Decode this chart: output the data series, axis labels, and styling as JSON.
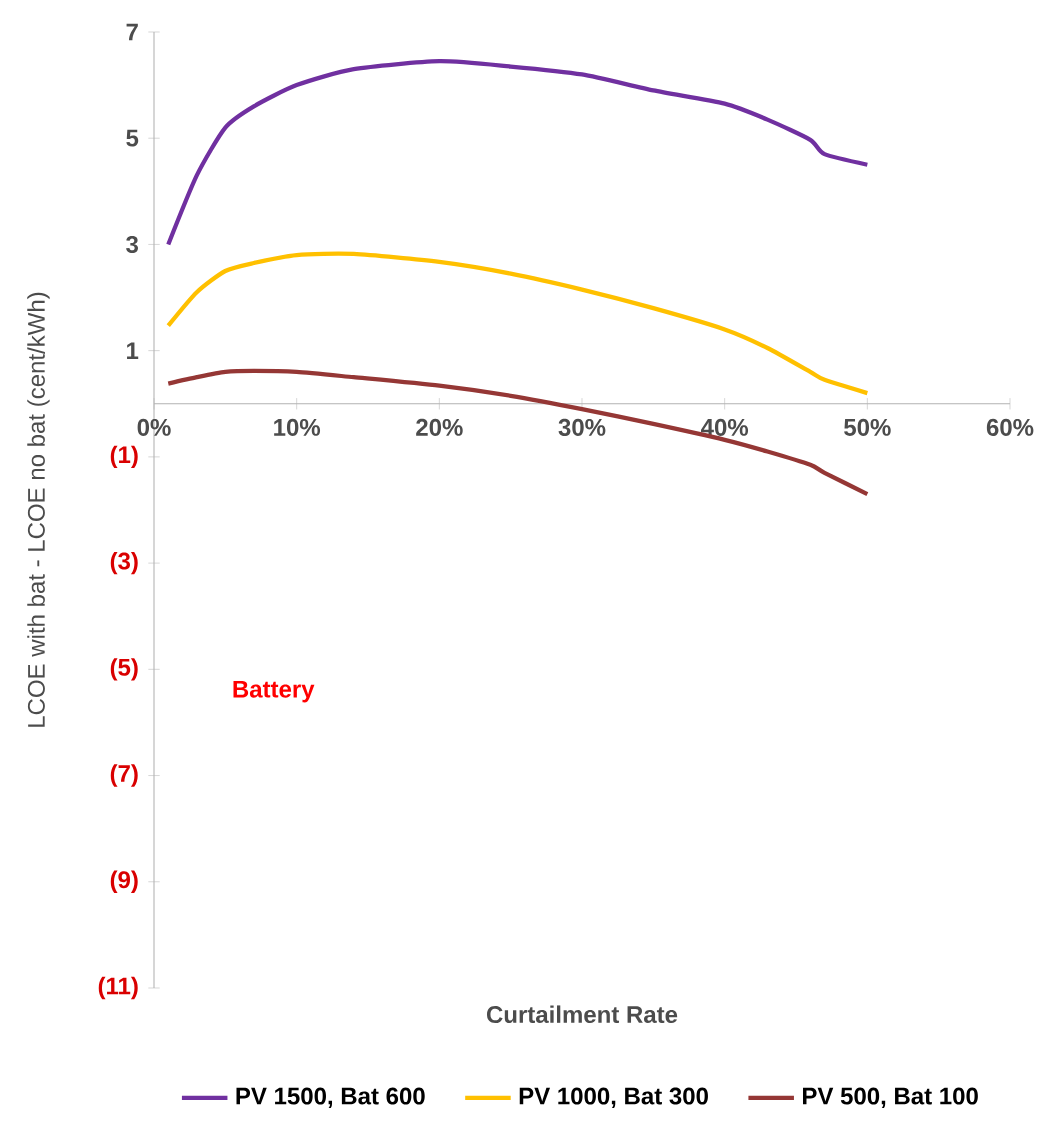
{
  "chart_data": {
    "type": "line",
    "xlabel": "Curtailment Rate",
    "ylabel": "LCOE with bat - LCOE no bat (cent/kWh)",
    "xlim": [
      0,
      60
    ],
    "xticks": [
      {
        "value": 0,
        "label": "0%"
      },
      {
        "value": 10,
        "label": "10%"
      },
      {
        "value": 20,
        "label": "20%"
      },
      {
        "value": 30,
        "label": "30%"
      },
      {
        "value": 40,
        "label": "40%"
      },
      {
        "value": 50,
        "label": "50%"
      },
      {
        "value": 60,
        "label": "60%"
      }
    ],
    "ylim": [
      -11,
      7
    ],
    "yticks": [
      {
        "value": -11,
        "label": "(11)"
      },
      {
        "value": -9,
        "label": "(9)"
      },
      {
        "value": -7,
        "label": "(7)"
      },
      {
        "value": -5,
        "label": "(5)"
      },
      {
        "value": -3,
        "label": "(3)"
      },
      {
        "value": -1,
        "label": "(1)"
      },
      1,
      3,
      5,
      7
    ],
    "x": [
      1,
      3,
      5,
      7,
      10,
      14,
      20,
      25,
      30,
      35,
      40,
      43,
      46,
      47,
      50
    ],
    "series": [
      {
        "name": "PV 1500, Bat 600",
        "color": "#7030a0",
        "values": [
          3.0,
          4.3,
          5.2,
          5.6,
          6.0,
          6.3,
          6.45,
          6.35,
          6.2,
          5.9,
          5.65,
          5.35,
          4.97,
          4.7,
          4.5
        ]
      },
      {
        "name": "PV 1000, Bat 300",
        "color": "#ffc000",
        "values": [
          1.47,
          2.1,
          2.5,
          2.65,
          2.8,
          2.82,
          2.67,
          2.45,
          2.15,
          1.8,
          1.4,
          1.05,
          0.6,
          0.45,
          0.2
        ]
      },
      {
        "name": "PV 500, Bat 100",
        "color": "#953735",
        "values": [
          0.38,
          0.5,
          0.6,
          0.62,
          0.6,
          0.5,
          0.34,
          0.15,
          -0.1,
          -0.38,
          -0.68,
          -0.9,
          -1.15,
          -1.3,
          -1.7
        ]
      }
    ],
    "legend": "bottom",
    "annotations": [
      "Battery"
    ]
  }
}
